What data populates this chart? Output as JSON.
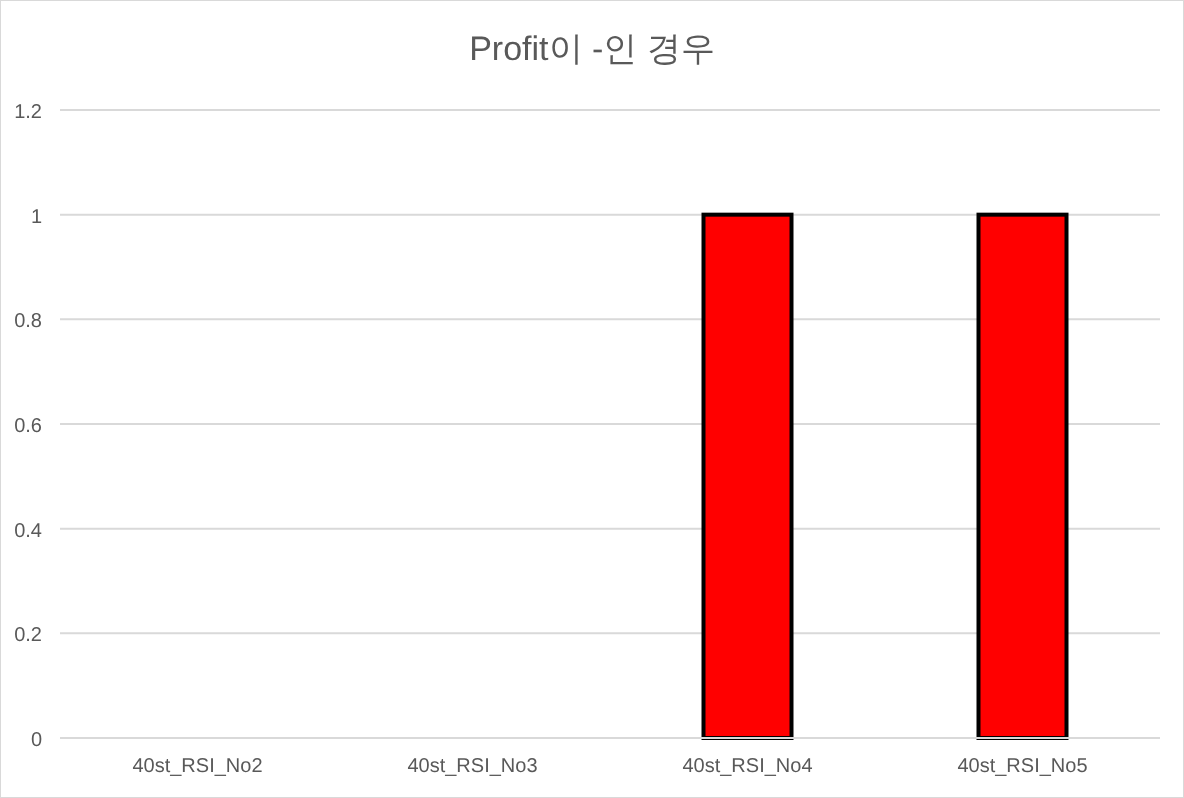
{
  "chart_data": {
    "type": "bar",
    "title": "Profit이 -인 경우",
    "categories": [
      "40st_RSI_No2",
      "40st_RSI_No3",
      "40st_RSI_No4",
      "40st_RSI_No5"
    ],
    "values": [
      0,
      0,
      1,
      1
    ],
    "color": "#ff0000",
    "ylim": [
      0,
      1.2
    ],
    "yticks": [
      0,
      0.2,
      0.4,
      0.6,
      0.8,
      1,
      1.2
    ],
    "grid": "y"
  }
}
